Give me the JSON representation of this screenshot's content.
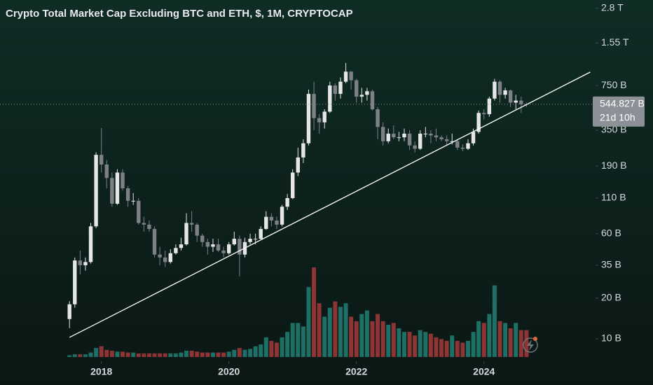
{
  "chart_data": {
    "type": "candlestick",
    "title": "Crypto Total Market Cap Excluding BTC and ETH, $, 1M, CRYPTOCAP",
    "log_scale": true,
    "x": [
      "2017-07",
      "2017-08",
      "2017-09",
      "2017-10",
      "2017-11",
      "2017-12",
      "2018-01",
      "2018-02",
      "2018-03",
      "2018-04",
      "2018-05",
      "2018-06",
      "2018-07",
      "2018-08",
      "2018-09",
      "2018-10",
      "2018-11",
      "2018-12",
      "2019-01",
      "2019-02",
      "2019-03",
      "2019-04",
      "2019-05",
      "2019-06",
      "2019-07",
      "2019-08",
      "2019-09",
      "2019-10",
      "2019-11",
      "2019-12",
      "2020-01",
      "2020-02",
      "2020-03",
      "2020-04",
      "2020-05",
      "2020-06",
      "2020-07",
      "2020-08",
      "2020-09",
      "2020-10",
      "2020-11",
      "2020-12",
      "2021-01",
      "2021-02",
      "2021-03",
      "2021-04",
      "2021-05",
      "2021-06",
      "2021-07",
      "2021-08",
      "2021-09",
      "2021-10",
      "2021-11",
      "2021-12",
      "2022-01",
      "2022-02",
      "2022-03",
      "2022-04",
      "2022-05",
      "2022-06",
      "2022-07",
      "2022-08",
      "2022-09",
      "2022-10",
      "2022-11",
      "2022-12",
      "2023-01",
      "2023-02",
      "2023-03",
      "2023-04",
      "2023-05",
      "2023-06",
      "2023-07",
      "2023-08",
      "2023-09",
      "2023-10",
      "2023-11",
      "2023-12",
      "2024-01",
      "2024-02",
      "2024-03",
      "2024-04",
      "2024-05",
      "2024-06",
      "2024-07",
      "2024-08",
      "2024-09"
    ],
    "open": [
      14,
      18,
      38,
      35,
      37,
      68,
      230,
      195,
      155,
      100,
      170,
      130,
      105,
      105,
      72,
      70,
      65,
      42,
      40,
      37,
      43,
      47,
      50,
      72,
      70,
      58,
      52,
      48,
      50,
      45,
      43,
      50,
      55,
      42,
      52,
      55,
      55,
      65,
      80,
      75,
      70,
      95,
      110,
      170,
      220,
      280,
      650,
      430,
      400,
      480,
      750,
      650,
      800,
      950,
      820,
      620,
      640,
      680,
      500,
      370,
      290,
      330,
      310,
      310,
      330,
      270,
      255,
      330,
      330,
      320,
      310,
      300,
      290,
      290,
      260,
      255,
      280,
      340,
      470,
      460,
      600,
      800,
      640,
      690,
      560,
      580,
      545
    ],
    "high": [
      19,
      40,
      45,
      40,
      72,
      240,
      363,
      210,
      170,
      180,
      180,
      135,
      120,
      110,
      80,
      75,
      68,
      48,
      45,
      46,
      50,
      56,
      85,
      88,
      72,
      60,
      55,
      55,
      55,
      48,
      52,
      62,
      58,
      56,
      60,
      60,
      68,
      88,
      85,
      80,
      98,
      118,
      180,
      260,
      300,
      700,
      800,
      460,
      500,
      800,
      780,
      860,
      1100,
      960,
      840,
      720,
      720,
      700,
      520,
      400,
      360,
      380,
      340,
      360,
      350,
      290,
      350,
      370,
      350,
      360,
      320,
      320,
      330,
      300,
      275,
      300,
      360,
      490,
      500,
      620,
      840,
      820,
      720,
      700,
      640,
      620,
      560
    ],
    "low": [
      12,
      17,
      30,
      32,
      36,
      66,
      170,
      130,
      95,
      98,
      125,
      95,
      98,
      70,
      62,
      62,
      40,
      35,
      34,
      36,
      42,
      45,
      49,
      62,
      52,
      48,
      42,
      44,
      44,
      40,
      42,
      49,
      29,
      40,
      50,
      50,
      54,
      64,
      68,
      65,
      68,
      90,
      108,
      160,
      200,
      270,
      350,
      330,
      360,
      470,
      580,
      600,
      780,
      700,
      560,
      560,
      580,
      490,
      300,
      270,
      280,
      300,
      290,
      290,
      250,
      240,
      250,
      310,
      280,
      290,
      290,
      270,
      275,
      250,
      245,
      250,
      270,
      330,
      420,
      440,
      580,
      560,
      600,
      520,
      500,
      470,
      520
    ],
    "close": [
      18,
      38,
      35,
      37,
      68,
      230,
      195,
      155,
      100,
      170,
      130,
      105,
      105,
      72,
      70,
      65,
      42,
      40,
      37,
      43,
      47,
      50,
      72,
      70,
      58,
      52,
      48,
      50,
      45,
      43,
      50,
      55,
      42,
      52,
      55,
      55,
      65,
      80,
      75,
      70,
      95,
      110,
      170,
      220,
      280,
      650,
      430,
      400,
      480,
      750,
      650,
      800,
      950,
      820,
      620,
      640,
      680,
      500,
      370,
      290,
      330,
      310,
      310,
      330,
      270,
      255,
      330,
      330,
      320,
      310,
      300,
      290,
      290,
      260,
      255,
      280,
      340,
      470,
      460,
      600,
      800,
      640,
      690,
      560,
      580,
      545,
      544.827
    ],
    "volume": [
      2,
      3,
      3,
      3,
      5,
      10,
      12,
      8,
      7,
      6,
      6,
      5,
      5,
      4,
      4,
      4,
      4,
      4,
      4,
      4,
      4,
      5,
      7,
      7,
      6,
      5,
      5,
      5,
      5,
      5,
      6,
      8,
      10,
      8,
      9,
      12,
      14,
      22,
      18,
      16,
      22,
      28,
      38,
      38,
      34,
      78,
      100,
      60,
      45,
      55,
      62,
      56,
      60,
      45,
      40,
      48,
      52,
      40,
      48,
      40,
      36,
      38,
      32,
      28,
      28,
      24,
      30,
      28,
      26,
      22,
      20,
      18,
      24,
      18,
      16,
      18,
      28,
      40,
      38,
      48,
      80,
      40,
      38,
      32,
      38,
      30,
      30
    ],
    "up_color": "#e6e6e6",
    "down_color": "#7d8085",
    "volume_up_color": "#1e6f65",
    "volume_down_color": "#8e3434",
    "trendline": {
      "x": [
        "2017-07",
        "2025-09"
      ],
      "values": [
        10.24,
        942
      ],
      "color": "#ffffff"
    },
    "last_price": {
      "value": 544.827,
      "label": "544.827 B"
    },
    "countdown": "21d 10h",
    "xlim": [
      2016.41,
      2025.75
    ],
    "xticks": [
      2018,
      2020,
      2022,
      2024
    ],
    "ylim": [
      7.33,
      3220
    ],
    "yticks": [
      {
        "value": 2800,
        "label": "2.8 T"
      },
      {
        "value": 1550,
        "label": "1.55 T"
      },
      {
        "value": 750,
        "label": "750 B"
      },
      {
        "value": 350,
        "label": "350 B"
      },
      {
        "value": 190,
        "label": "190 B"
      },
      {
        "value": 110,
        "label": "110 B"
      },
      {
        "value": 60,
        "label": "60 B"
      },
      {
        "value": 35,
        "label": "35 B"
      },
      {
        "value": 20,
        "label": "20 B"
      },
      {
        "value": 10,
        "label": "10 B"
      }
    ]
  }
}
